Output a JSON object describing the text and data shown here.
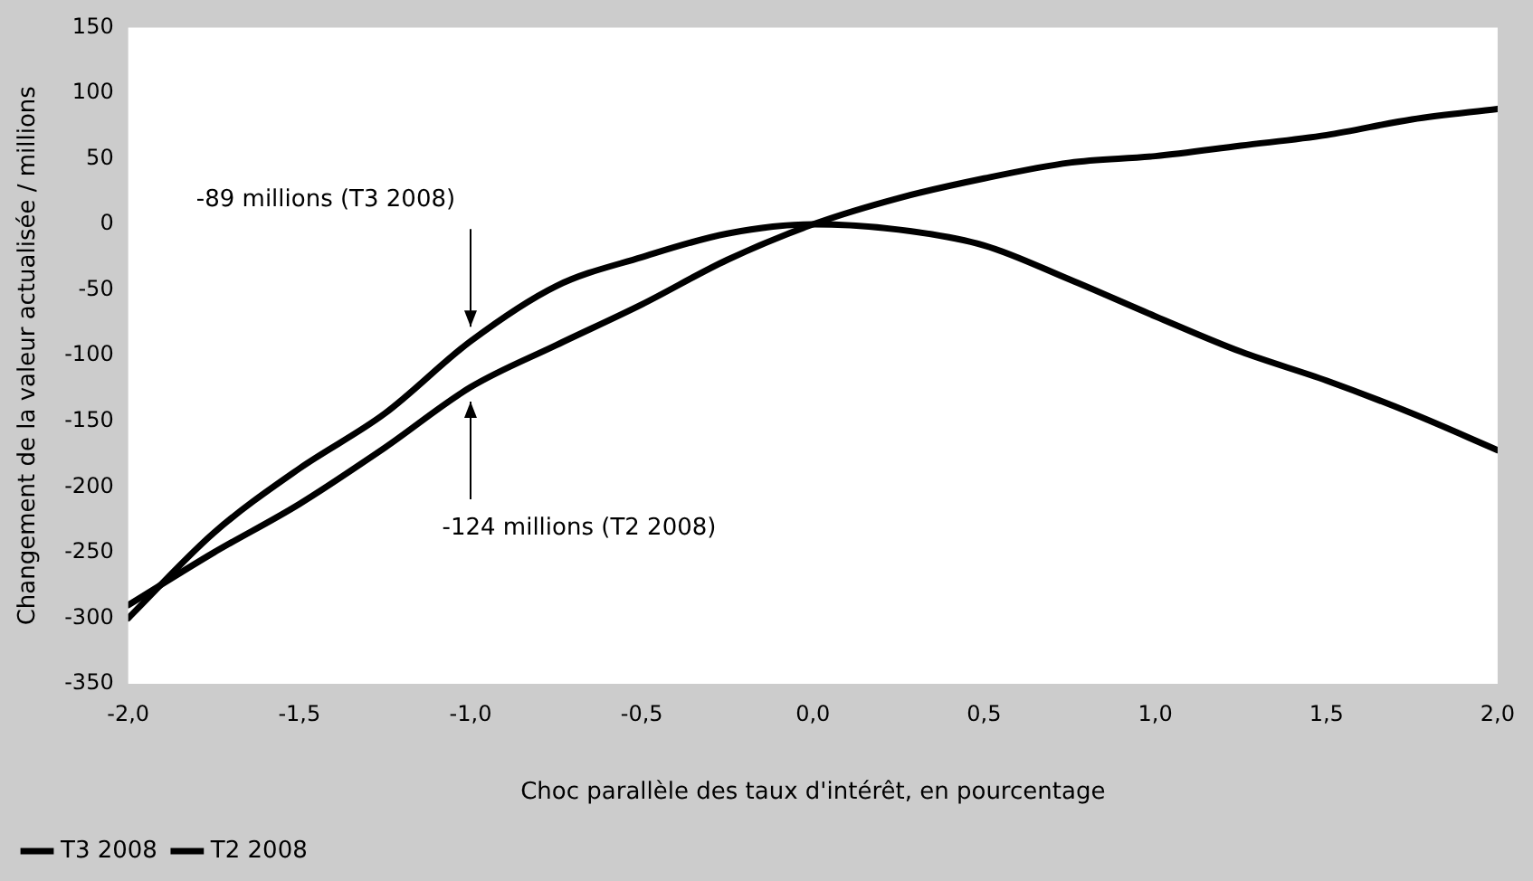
{
  "chart_data": {
    "type": "line",
    "xlabel": "Choc parallèle des taux d'intérêt, en pourcentage",
    "ylabel": "Changement de la valeur actualisée / millions",
    "x": [
      -2,
      -1.75,
      -1.5,
      -1.25,
      -1,
      -0.75,
      -0.5,
      -0.25,
      0,
      0.25,
      0.5,
      0.75,
      1,
      1.25,
      1.5,
      1.75,
      2
    ],
    "series": [
      {
        "name": "T3 2008",
        "color": "#000000",
        "values": [
          -300,
          -235,
          -186,
          -144,
          -89,
          -47,
          -25,
          -7,
          0,
          -4,
          -16,
          -42,
          -70,
          -97,
          -119,
          -144,
          -172
        ]
      },
      {
        "name": "T2 2008",
        "color": "#000000",
        "values": [
          -290,
          -250,
          -213,
          -170,
          -124,
          -92,
          -61,
          -27,
          0,
          20,
          35,
          47,
          52,
          60,
          68,
          80,
          88
        ]
      }
    ],
    "xlim": [
      -2,
      2
    ],
    "xticks": [
      {
        "value": -2,
        "label": "-2,0"
      },
      {
        "value": -1.5,
        "label": "-1,5"
      },
      {
        "value": -1,
        "label": "-1,0"
      },
      {
        "value": -0.5,
        "label": "-0,5"
      },
      {
        "value": 0,
        "label": "0,0"
      },
      {
        "value": 0.5,
        "label": "0,5"
      },
      {
        "value": 1,
        "label": "1,0"
      },
      {
        "value": 1.5,
        "label": "1,5"
      },
      {
        "value": 2,
        "label": "2,0"
      }
    ],
    "ylim": [
      -350,
      150
    ],
    "yticks": [
      -350,
      -300,
      -250,
      -200,
      -150,
      -100,
      -50,
      0,
      50,
      100,
      150
    ],
    "annotations": [
      {
        "text": "-89 millions (T3 2008)",
        "x": -1,
        "y": -89
      },
      {
        "text": "-124 millions (T2 2008)",
        "x": -1,
        "y": -124
      }
    ],
    "grid": false,
    "legend": "bottom left",
    "marker": "none",
    "line_style": "solid"
  }
}
